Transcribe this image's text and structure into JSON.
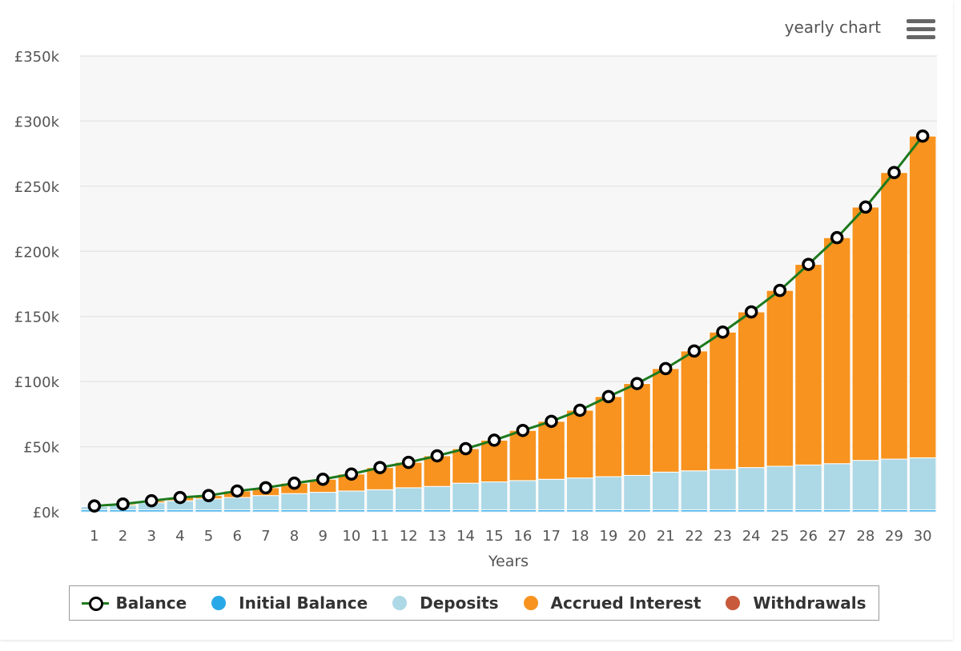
{
  "header": {
    "title": "yearly chart",
    "menu_icon": "hamburger-menu-icon"
  },
  "colors": {
    "initial_balance": "#29a8e8",
    "deposits": "#add8e6",
    "accrued_interest": "#f7931e",
    "withdrawals": "#c8593b",
    "balance_line": "#1e7a1e",
    "plot_background": "#f7f7f7",
    "grid": "#e6e6e6"
  },
  "chart_data": {
    "type": "bar",
    "title": "yearly chart",
    "xlabel": "Years",
    "ylabel": "",
    "ylim": [
      0,
      350000
    ],
    "y_ticks": [
      0,
      50000,
      100000,
      150000,
      200000,
      250000,
      300000,
      350000
    ],
    "y_tick_labels": [
      "£0k",
      "£50k",
      "£100k",
      "£150k",
      "£200k",
      "£250k",
      "£300k",
      "£350k"
    ],
    "grid": true,
    "stacked": true,
    "legend_position": "bottom",
    "categories": [
      "1",
      "2",
      "3",
      "4",
      "5",
      "6",
      "7",
      "8",
      "9",
      "10",
      "11",
      "12",
      "13",
      "14",
      "15",
      "16",
      "17",
      "18",
      "19",
      "20",
      "21",
      "22",
      "23",
      "24",
      "25",
      "26",
      "27",
      "28",
      "29",
      "30"
    ],
    "series": [
      {
        "name": "Initial Balance",
        "type": "bar",
        "values": [
          1500,
          1500,
          1500,
          1500,
          1500,
          1500,
          1500,
          1500,
          1500,
          1500,
          1500,
          1500,
          1500,
          1500,
          1500,
          1500,
          1500,
          1500,
          1500,
          1500,
          1500,
          1500,
          1500,
          1500,
          1500,
          1500,
          1500,
          1500,
          1500,
          1500
        ]
      },
      {
        "name": "Deposits",
        "type": "bar",
        "values": [
          2500,
          3500,
          5500,
          7000,
          8500,
          9500,
          11000,
          12500,
          13500,
          14500,
          15500,
          17000,
          18000,
          20500,
          21500,
          22500,
          23500,
          24500,
          25500,
          26500,
          29000,
          30000,
          31000,
          32500,
          33500,
          34500,
          35500,
          38000,
          39000,
          40000
        ]
      },
      {
        "name": "Accrued Interest",
        "type": "bar",
        "values": [
          500,
          1000,
          1500,
          2500,
          2500,
          5000,
          6000,
          8000,
          10000,
          13000,
          17000,
          19500,
          23500,
          26500,
          32000,
          38500,
          44500,
          52000,
          61500,
          70500,
          79500,
          92000,
          105500,
          119500,
          135000,
          154000,
          173500,
          194500,
          220000,
          247000
        ]
      },
      {
        "name": "Withdrawals",
        "type": "bar",
        "values": [
          0,
          0,
          0,
          0,
          0,
          0,
          0,
          0,
          0,
          0,
          0,
          0,
          0,
          0,
          0,
          0,
          0,
          0,
          0,
          0,
          0,
          0,
          0,
          0,
          0,
          0,
          0,
          0,
          0,
          0
        ]
      },
      {
        "name": "Balance",
        "type": "line",
        "values": [
          4500,
          6000,
          8500,
          11000,
          12500,
          16000,
          18500,
          22000,
          25000,
          29000,
          34000,
          38000,
          43000,
          48500,
          55000,
          62500,
          69500,
          78000,
          88500,
          98500,
          110000,
          123500,
          138000,
          153500,
          170000,
          190000,
          210500,
          234000,
          260500,
          288500
        ]
      }
    ]
  },
  "legend": {
    "items": [
      {
        "label": "Balance",
        "icon": "line-marker-icon"
      },
      {
        "label": "Initial Balance",
        "icon": "circle-icon"
      },
      {
        "label": "Deposits",
        "icon": "circle-icon"
      },
      {
        "label": "Accrued Interest",
        "icon": "circle-icon"
      },
      {
        "label": "Withdrawals",
        "icon": "circle-icon"
      }
    ]
  }
}
